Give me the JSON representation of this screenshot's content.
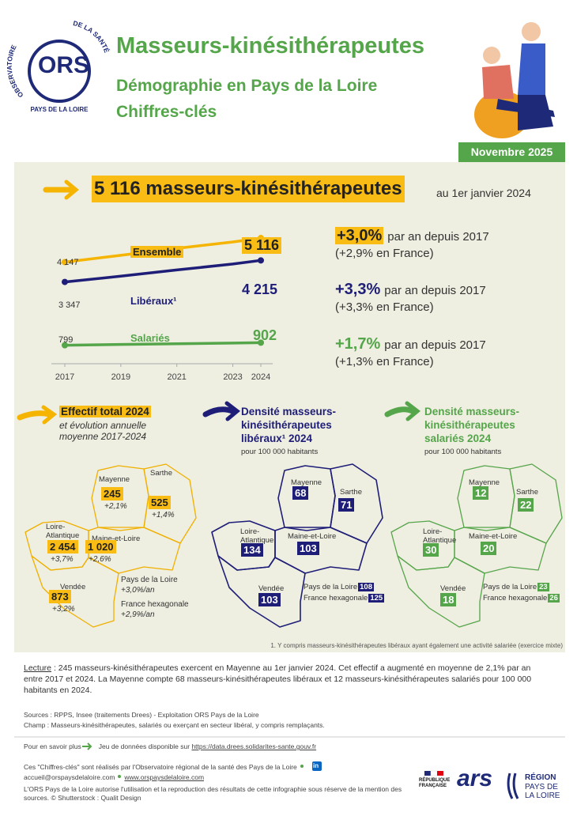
{
  "header": {
    "logo": {
      "arc_left": "OBSERVATOIRE",
      "arc_right": "DE LA SANTÉ",
      "mark": "ORS",
      "region": "PAYS DE LA LOIRE"
    },
    "title": "Masseurs-kinésithérapeutes",
    "subtitle": [
      "Démographie en Pays de la Loire",
      "Chiffres-clés"
    ],
    "date": "Novembre 2025"
  },
  "headline": {
    "value": "5 116 masseurs-kinésithérapeutes",
    "note": "au 1er janvier 2024"
  },
  "chart_data": {
    "type": "line",
    "x": [
      2017,
      2019,
      2021,
      2023,
      2024
    ],
    "xlim": [
      2017,
      2024
    ],
    "xticks": [
      2017,
      2019,
      2021,
      2023,
      2024
    ],
    "ylim": [
      500,
      5500
    ],
    "series": [
      {
        "name": "Ensemble",
        "color": "#f5b400",
        "values": [
          4147,
          4420,
          4700,
          4960,
          5116
        ],
        "value_labels": [
          "4 147",
          null,
          null,
          null,
          "5 116"
        ]
      },
      {
        "name": "Libéraux¹",
        "color": "#1e1e78",
        "values": [
          3347,
          3580,
          3830,
          4070,
          4215
        ],
        "value_labels": [
          "3 347",
          null,
          null,
          null,
          "4 215"
        ]
      },
      {
        "name": "Salariés",
        "color": "#55a54a",
        "values": [
          799,
          830,
          860,
          885,
          902
        ],
        "value_labels": [
          "799",
          null,
          null,
          null,
          "902"
        ]
      }
    ]
  },
  "trends": [
    {
      "rate": "+3,0%",
      "text": "par an depuis 2017",
      "france": "(+2,9% en France)"
    },
    {
      "rate": "+3,3%",
      "text": "par an depuis 2017",
      "france": "(+3,3% en France)"
    },
    {
      "rate": "+1,7%",
      "text": "par an depuis 2017",
      "france": "(+1,3% en France)"
    }
  ],
  "maps": [
    {
      "title": "Effectif total 2024",
      "subtitle": "et évolution annuelle moyenne 2017-2024",
      "regions": [
        {
          "name": "Mayenne",
          "value": "245",
          "change": "+2,1%"
        },
        {
          "name": "Sarthe",
          "value": "525",
          "change": "+1,4%"
        },
        {
          "name": "Loire-Atlantique",
          "value": "2 454",
          "change": "+3,7%"
        },
        {
          "name": "Maine-et-Loire",
          "value": "1 020",
          "change": "+2,6%"
        },
        {
          "name": "Vendée",
          "value": "873",
          "change": "+3,2%"
        }
      ],
      "totals": [
        {
          "name": "Pays de la Loire",
          "value": "+3,0%/an"
        },
        {
          "name": "France hexagonale",
          "value": "+2,9%/an"
        }
      ]
    },
    {
      "title": "Densité masseurs-kinésithérapeutes libéraux¹ 2024",
      "unit": "pour 100 000 habitants",
      "regions": [
        {
          "name": "Mayenne",
          "value": "68"
        },
        {
          "name": "Sarthe",
          "value": "71"
        },
        {
          "name": "Loire-Atlantique",
          "value": "134"
        },
        {
          "name": "Maine-et-Loire",
          "value": "103"
        },
        {
          "name": "Vendée",
          "value": "103"
        }
      ],
      "totals": [
        {
          "name": "Pays de la Loire",
          "value": "108"
        },
        {
          "name": "France hexagonale",
          "value": "125"
        }
      ]
    },
    {
      "title": "Densité masseurs-kinésithérapeutes salariés 2024",
      "unit": "pour 100 000 habitants",
      "regions": [
        {
          "name": "Mayenne",
          "value": "12"
        },
        {
          "name": "Sarthe",
          "value": "22"
        },
        {
          "name": "Loire-Atlantique",
          "value": "30"
        },
        {
          "name": "Maine-et-Loire",
          "value": "20"
        },
        {
          "name": "Vendée",
          "value": "18"
        }
      ],
      "totals": [
        {
          "name": "Pays de la Loire",
          "value": "23"
        },
        {
          "name": "France hexagonale",
          "value": "26"
        }
      ]
    }
  ],
  "footnote": "1. Y compris masseurs-kinésithérapeutes libéraux ayant également une activité salariée (exercice mixte)",
  "lecture": {
    "label": "Lecture",
    "text": ": 245 masseurs-kinésithérapeutes exercent en Mayenne au 1er janvier 2024. Cet effectif a augmenté en moyenne de 2,1% par an entre 2017 et 2024. La Mayenne compte 68 masseurs-kinésithérapeutes libéraux et 12 masseurs-kinésithérapeutes salariés pour 100 000 habitants en 2024."
  },
  "sources": [
    "Sources : RPPS, Insee (traitements Drees) - Exploitation ORS Pays de la Loire",
    "Champ : Masseurs-kinésithérapeutes, salariés ou exerçant en secteur libéral, y compris remplaçants."
  ],
  "more": {
    "label": "Pour en savoir plus",
    "text": "Jeu de données disponible sur",
    "link": "https://data.drees.solidarites-sante.gouv.fr"
  },
  "credits": {
    "line1": "Ces \"Chiffres-clés\" sont réalisés par l'Observatoire régional de la santé des Pays de la Loire",
    "linkedin": "in",
    "contact": "accueil@orspaysdelaloire.com",
    "site": "www.orspaysdelaloire.com",
    "license": "L'ORS Pays de la Loire autorise l'utilisation et la reproduction des résultats de cette infographie sous réserve de la mention des sources. © Shutterstock : Qualit Design"
  },
  "partners": {
    "rf": "RÉPUBLIQUE FRANÇAISE",
    "ars": "ars",
    "region": "RÉGION",
    "region_name": "PAYS DE LA LOIRE"
  }
}
